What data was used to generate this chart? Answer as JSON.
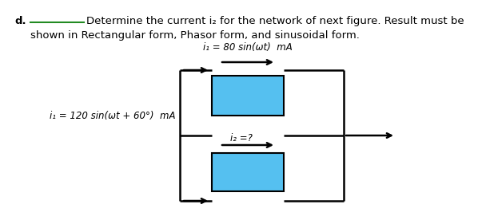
{
  "bg_color": "#ffffff",
  "box_color": "#55c0f0",
  "box_edge_color": "#000000",
  "line_color": "#000000",
  "label_d": "d.",
  "main_text_line1": "Determine the current i₂ for the network of next figure. Result must be",
  "main_text_line2": "shown in Rectangular form, Phasor form, and sinusoidal form.",
  "label_i1_top": "i₁ = 80 sin(ωt)  mA",
  "label_i1_left": "i₁ = 120 sin(ωt + 60°)  mA",
  "label_i2": "i₂ =?",
  "font_size_main": 9.5,
  "font_size_label": 8.5,
  "underline_color": "#228B22",
  "lw_circuit": 1.8
}
